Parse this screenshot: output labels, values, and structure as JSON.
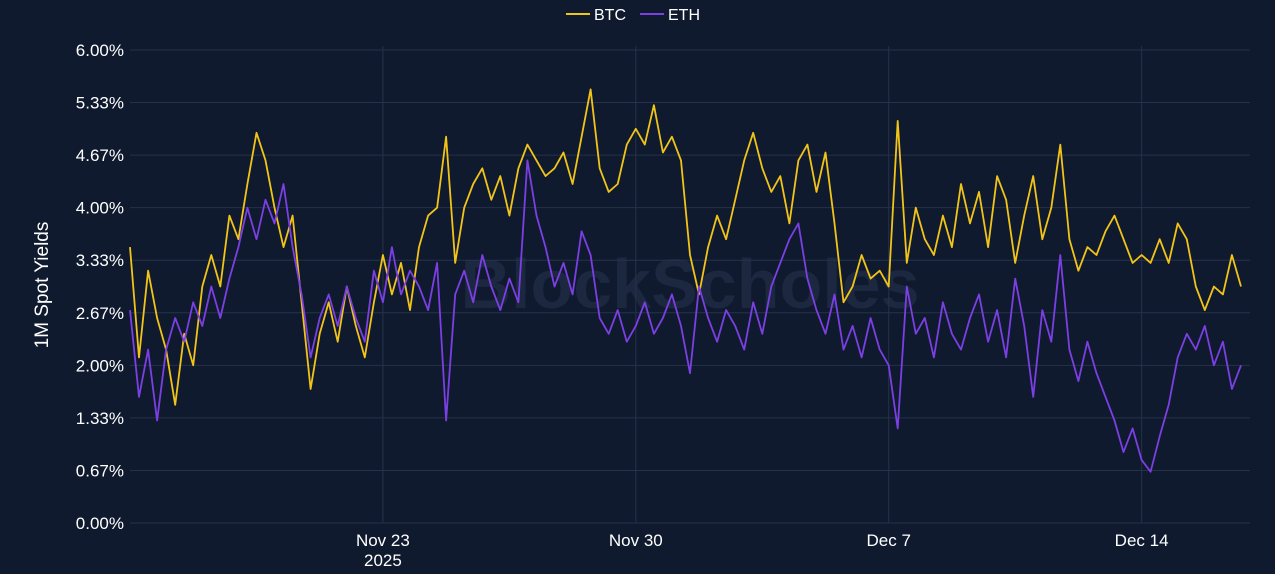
{
  "chart_data": {
    "type": "line",
    "title": "",
    "watermark": "BlockScholes",
    "ylabel": "1M Spot Yields",
    "xlabel": "",
    "x_range": [
      "2025-11-16",
      "2025-12-17"
    ],
    "ylim": [
      0,
      6
    ],
    "y_ticks": [
      "0.00%",
      "0.67%",
      "1.33%",
      "2.00%",
      "2.67%",
      "3.33%",
      "4.00%",
      "4.67%",
      "5.33%",
      "6.00%"
    ],
    "y_tick_values": [
      0,
      0.6667,
      1.3333,
      2.0,
      2.6667,
      3.3333,
      4.0,
      4.6667,
      5.3333,
      6.0
    ],
    "x_ticks": [
      {
        "date": "2025-11-23",
        "label": "Nov 23",
        "sublabel": "2025"
      },
      {
        "date": "2025-11-30",
        "label": "Nov 30",
        "sublabel": ""
      },
      {
        "date": "2025-12-07",
        "label": "Dec 7",
        "sublabel": ""
      },
      {
        "date": "2025-12-14",
        "label": "Dec 14",
        "sublabel": ""
      }
    ],
    "grid": true,
    "legend_position": "top-center",
    "colors": {
      "background": "#0f1a2e",
      "grid": "#26324a",
      "text": "#ffffff"
    },
    "series": [
      {
        "name": "BTC",
        "color": "#f2c418",
        "points": [
          [
            "2025-11-16T00:00",
            3.5
          ],
          [
            "2025-11-16T06:00",
            2.1
          ],
          [
            "2025-11-16T12:00",
            3.2
          ],
          [
            "2025-11-16T18:00",
            2.6
          ],
          [
            "2025-11-17T00:00",
            2.2
          ],
          [
            "2025-11-17T06:00",
            1.5
          ],
          [
            "2025-11-17T12:00",
            2.4
          ],
          [
            "2025-11-17T18:00",
            2.0
          ],
          [
            "2025-11-18T00:00",
            3.0
          ],
          [
            "2025-11-18T06:00",
            3.4
          ],
          [
            "2025-11-18T12:00",
            3.0
          ],
          [
            "2025-11-18T18:00",
            3.9
          ],
          [
            "2025-11-19T00:00",
            3.6
          ],
          [
            "2025-11-19T06:00",
            4.3
          ],
          [
            "2025-11-19T12:00",
            4.95
          ],
          [
            "2025-11-19T18:00",
            4.6
          ],
          [
            "2025-11-20T00:00",
            4.0
          ],
          [
            "2025-11-20T06:00",
            3.5
          ],
          [
            "2025-11-20T12:00",
            3.9
          ],
          [
            "2025-11-20T18:00",
            2.8
          ],
          [
            "2025-11-21T00:00",
            1.7
          ],
          [
            "2025-11-21T06:00",
            2.4
          ],
          [
            "2025-11-21T12:00",
            2.8
          ],
          [
            "2025-11-21T18:00",
            2.3
          ],
          [
            "2025-11-22T00:00",
            3.0
          ],
          [
            "2025-11-22T06:00",
            2.5
          ],
          [
            "2025-11-22T12:00",
            2.1
          ],
          [
            "2025-11-22T18:00",
            2.8
          ],
          [
            "2025-11-23T00:00",
            3.4
          ],
          [
            "2025-11-23T06:00",
            2.9
          ],
          [
            "2025-11-23T12:00",
            3.3
          ],
          [
            "2025-11-23T18:00",
            2.7
          ],
          [
            "2025-11-24T00:00",
            3.5
          ],
          [
            "2025-11-24T06:00",
            3.9
          ],
          [
            "2025-11-24T12:00",
            4.0
          ],
          [
            "2025-11-24T18:00",
            4.9
          ],
          [
            "2025-11-25T00:00",
            3.3
          ],
          [
            "2025-11-25T06:00",
            4.0
          ],
          [
            "2025-11-25T12:00",
            4.3
          ],
          [
            "2025-11-25T18:00",
            4.5
          ],
          [
            "2025-11-26T00:00",
            4.1
          ],
          [
            "2025-11-26T06:00",
            4.4
          ],
          [
            "2025-11-26T12:00",
            3.9
          ],
          [
            "2025-11-26T18:00",
            4.5
          ],
          [
            "2025-11-27T00:00",
            4.8
          ],
          [
            "2025-11-27T06:00",
            4.6
          ],
          [
            "2025-11-27T12:00",
            4.4
          ],
          [
            "2025-11-27T18:00",
            4.5
          ],
          [
            "2025-11-28T00:00",
            4.7
          ],
          [
            "2025-11-28T06:00",
            4.3
          ],
          [
            "2025-11-28T12:00",
            4.9
          ],
          [
            "2025-11-28T18:00",
            5.5
          ],
          [
            "2025-11-29T00:00",
            4.5
          ],
          [
            "2025-11-29T06:00",
            4.2
          ],
          [
            "2025-11-29T12:00",
            4.3
          ],
          [
            "2025-11-29T18:00",
            4.8
          ],
          [
            "2025-11-30T00:00",
            5.0
          ],
          [
            "2025-11-30T06:00",
            4.8
          ],
          [
            "2025-11-30T12:00",
            5.3
          ],
          [
            "2025-11-30T18:00",
            4.7
          ],
          [
            "2025-12-01T00:00",
            4.9
          ],
          [
            "2025-12-01T06:00",
            4.6
          ],
          [
            "2025-12-01T12:00",
            3.4
          ],
          [
            "2025-12-01T18:00",
            2.9
          ],
          [
            "2025-12-02T00:00",
            3.5
          ],
          [
            "2025-12-02T06:00",
            3.9
          ],
          [
            "2025-12-02T12:00",
            3.6
          ],
          [
            "2025-12-02T18:00",
            4.1
          ],
          [
            "2025-12-03T00:00",
            4.6
          ],
          [
            "2025-12-03T06:00",
            4.95
          ],
          [
            "2025-12-03T12:00",
            4.5
          ],
          [
            "2025-12-03T18:00",
            4.2
          ],
          [
            "2025-12-04T00:00",
            4.4
          ],
          [
            "2025-12-04T06:00",
            3.8
          ],
          [
            "2025-12-04T12:00",
            4.6
          ],
          [
            "2025-12-04T18:00",
            4.8
          ],
          [
            "2025-12-05T00:00",
            4.2
          ],
          [
            "2025-12-05T06:00",
            4.7
          ],
          [
            "2025-12-05T12:00",
            3.8
          ],
          [
            "2025-12-05T18:00",
            2.8
          ],
          [
            "2025-12-06T00:00",
            3.0
          ],
          [
            "2025-12-06T06:00",
            3.4
          ],
          [
            "2025-12-06T12:00",
            3.1
          ],
          [
            "2025-12-06T18:00",
            3.2
          ],
          [
            "2025-12-07T00:00",
            3.0
          ],
          [
            "2025-12-07T06:00",
            5.1
          ],
          [
            "2025-12-07T12:00",
            3.3
          ],
          [
            "2025-12-07T18:00",
            4.0
          ],
          [
            "2025-12-08T00:00",
            3.6
          ],
          [
            "2025-12-08T06:00",
            3.4
          ],
          [
            "2025-12-08T12:00",
            3.9
          ],
          [
            "2025-12-08T18:00",
            3.5
          ],
          [
            "2025-12-09T00:00",
            4.3
          ],
          [
            "2025-12-09T06:00",
            3.8
          ],
          [
            "2025-12-09T12:00",
            4.2
          ],
          [
            "2025-12-09T18:00",
            3.5
          ],
          [
            "2025-12-10T00:00",
            4.4
          ],
          [
            "2025-12-10T06:00",
            4.1
          ],
          [
            "2025-12-10T12:00",
            3.3
          ],
          [
            "2025-12-10T18:00",
            3.9
          ],
          [
            "2025-12-11T00:00",
            4.4
          ],
          [
            "2025-12-11T06:00",
            3.6
          ],
          [
            "2025-12-11T12:00",
            4.0
          ],
          [
            "2025-12-11T18:00",
            4.8
          ],
          [
            "2025-12-12T00:00",
            3.6
          ],
          [
            "2025-12-12T06:00",
            3.2
          ],
          [
            "2025-12-12T12:00",
            3.5
          ],
          [
            "2025-12-12T18:00",
            3.4
          ],
          [
            "2025-12-13T00:00",
            3.7
          ],
          [
            "2025-12-13T06:00",
            3.9
          ],
          [
            "2025-12-13T12:00",
            3.6
          ],
          [
            "2025-12-13T18:00",
            3.3
          ],
          [
            "2025-12-14T00:00",
            3.4
          ],
          [
            "2025-12-14T06:00",
            3.3
          ],
          [
            "2025-12-14T12:00",
            3.6
          ],
          [
            "2025-12-14T18:00",
            3.3
          ],
          [
            "2025-12-15T00:00",
            3.8
          ],
          [
            "2025-12-15T06:00",
            3.6
          ],
          [
            "2025-12-15T12:00",
            3.0
          ],
          [
            "2025-12-15T18:00",
            2.7
          ],
          [
            "2025-12-16T00:00",
            3.0
          ],
          [
            "2025-12-16T06:00",
            2.9
          ],
          [
            "2025-12-16T12:00",
            3.4
          ],
          [
            "2025-12-16T18:00",
            3.0
          ]
        ]
      },
      {
        "name": "ETH",
        "color": "#7b3fe4",
        "points": [
          [
            "2025-11-16T00:00",
            2.7
          ],
          [
            "2025-11-16T06:00",
            1.6
          ],
          [
            "2025-11-16T12:00",
            2.2
          ],
          [
            "2025-11-16T18:00",
            1.3
          ],
          [
            "2025-11-17T00:00",
            2.2
          ],
          [
            "2025-11-17T06:00",
            2.6
          ],
          [
            "2025-11-17T12:00",
            2.3
          ],
          [
            "2025-11-17T18:00",
            2.8
          ],
          [
            "2025-11-18T00:00",
            2.5
          ],
          [
            "2025-11-18T06:00",
            3.0
          ],
          [
            "2025-11-18T12:00",
            2.6
          ],
          [
            "2025-11-18T18:00",
            3.1
          ],
          [
            "2025-11-19T00:00",
            3.5
          ],
          [
            "2025-11-19T06:00",
            4.0
          ],
          [
            "2025-11-19T12:00",
            3.6
          ],
          [
            "2025-11-19T18:00",
            4.1
          ],
          [
            "2025-11-20T00:00",
            3.8
          ],
          [
            "2025-11-20T06:00",
            4.3
          ],
          [
            "2025-11-20T12:00",
            3.5
          ],
          [
            "2025-11-20T18:00",
            2.9
          ],
          [
            "2025-11-21T00:00",
            2.1
          ],
          [
            "2025-11-21T06:00",
            2.6
          ],
          [
            "2025-11-21T12:00",
            2.9
          ],
          [
            "2025-11-21T18:00",
            2.5
          ],
          [
            "2025-11-22T00:00",
            3.0
          ],
          [
            "2025-11-22T06:00",
            2.6
          ],
          [
            "2025-11-22T12:00",
            2.3
          ],
          [
            "2025-11-22T18:00",
            3.2
          ],
          [
            "2025-11-23T00:00",
            2.8
          ],
          [
            "2025-11-23T06:00",
            3.5
          ],
          [
            "2025-11-23T12:00",
            2.9
          ],
          [
            "2025-11-23T18:00",
            3.2
          ],
          [
            "2025-11-24T00:00",
            3.0
          ],
          [
            "2025-11-24T06:00",
            2.7
          ],
          [
            "2025-11-24T12:00",
            3.3
          ],
          [
            "2025-11-24T18:00",
            1.3
          ],
          [
            "2025-11-25T00:00",
            2.9
          ],
          [
            "2025-11-25T06:00",
            3.2
          ],
          [
            "2025-11-25T12:00",
            2.8
          ],
          [
            "2025-11-25T18:00",
            3.4
          ],
          [
            "2025-11-26T00:00",
            3.0
          ],
          [
            "2025-11-26T06:00",
            2.7
          ],
          [
            "2025-11-26T12:00",
            3.1
          ],
          [
            "2025-11-26T18:00",
            2.8
          ],
          [
            "2025-11-27T00:00",
            4.6
          ],
          [
            "2025-11-27T06:00",
            3.9
          ],
          [
            "2025-11-27T12:00",
            3.5
          ],
          [
            "2025-11-27T18:00",
            3.0
          ],
          [
            "2025-11-28T00:00",
            3.3
          ],
          [
            "2025-11-28T06:00",
            2.9
          ],
          [
            "2025-11-28T12:00",
            3.7
          ],
          [
            "2025-11-28T18:00",
            3.4
          ],
          [
            "2025-11-29T00:00",
            2.6
          ],
          [
            "2025-11-29T06:00",
            2.4
          ],
          [
            "2025-11-29T12:00",
            2.7
          ],
          [
            "2025-11-29T18:00",
            2.3
          ],
          [
            "2025-11-30T00:00",
            2.5
          ],
          [
            "2025-11-30T06:00",
            2.8
          ],
          [
            "2025-11-30T12:00",
            2.4
          ],
          [
            "2025-11-30T18:00",
            2.6
          ],
          [
            "2025-12-01T00:00",
            2.9
          ],
          [
            "2025-12-01T06:00",
            2.5
          ],
          [
            "2025-12-01T12:00",
            1.9
          ],
          [
            "2025-12-01T18:00",
            3.0
          ],
          [
            "2025-12-02T00:00",
            2.6
          ],
          [
            "2025-12-02T06:00",
            2.3
          ],
          [
            "2025-12-02T12:00",
            2.7
          ],
          [
            "2025-12-02T18:00",
            2.5
          ],
          [
            "2025-12-03T00:00",
            2.2
          ],
          [
            "2025-12-03T06:00",
            2.8
          ],
          [
            "2025-12-03T12:00",
            2.4
          ],
          [
            "2025-12-03T18:00",
            3.0
          ],
          [
            "2025-12-04T00:00",
            3.3
          ],
          [
            "2025-12-04T06:00",
            3.6
          ],
          [
            "2025-12-04T12:00",
            3.8
          ],
          [
            "2025-12-04T18:00",
            3.1
          ],
          [
            "2025-12-05T00:00",
            2.7
          ],
          [
            "2025-12-05T06:00",
            2.4
          ],
          [
            "2025-12-05T12:00",
            2.9
          ],
          [
            "2025-12-05T18:00",
            2.2
          ],
          [
            "2025-12-06T00:00",
            2.5
          ],
          [
            "2025-12-06T06:00",
            2.1
          ],
          [
            "2025-12-06T12:00",
            2.6
          ],
          [
            "2025-12-06T18:00",
            2.2
          ],
          [
            "2025-12-07T00:00",
            2.0
          ],
          [
            "2025-12-07T06:00",
            1.2
          ],
          [
            "2025-12-07T12:00",
            3.0
          ],
          [
            "2025-12-07T18:00",
            2.4
          ],
          [
            "2025-12-08T00:00",
            2.6
          ],
          [
            "2025-12-08T06:00",
            2.1
          ],
          [
            "2025-12-08T12:00",
            2.8
          ],
          [
            "2025-12-08T18:00",
            2.4
          ],
          [
            "2025-12-09T00:00",
            2.2
          ],
          [
            "2025-12-09T06:00",
            2.6
          ],
          [
            "2025-12-09T12:00",
            2.9
          ],
          [
            "2025-12-09T18:00",
            2.3
          ],
          [
            "2025-12-10T00:00",
            2.7
          ],
          [
            "2025-12-10T06:00",
            2.1
          ],
          [
            "2025-12-10T12:00",
            3.1
          ],
          [
            "2025-12-10T18:00",
            2.5
          ],
          [
            "2025-12-11T00:00",
            1.6
          ],
          [
            "2025-12-11T06:00",
            2.7
          ],
          [
            "2025-12-11T12:00",
            2.3
          ],
          [
            "2025-12-11T18:00",
            3.4
          ],
          [
            "2025-12-12T00:00",
            2.2
          ],
          [
            "2025-12-12T06:00",
            1.8
          ],
          [
            "2025-12-12T12:00",
            2.3
          ],
          [
            "2025-12-12T18:00",
            1.9
          ],
          [
            "2025-12-13T00:00",
            1.6
          ],
          [
            "2025-12-13T06:00",
            1.3
          ],
          [
            "2025-12-13T12:00",
            0.9
          ],
          [
            "2025-12-13T18:00",
            1.2
          ],
          [
            "2025-12-14T00:00",
            0.8
          ],
          [
            "2025-12-14T06:00",
            0.65
          ],
          [
            "2025-12-14T12:00",
            1.1
          ],
          [
            "2025-12-14T18:00",
            1.5
          ],
          [
            "2025-12-15T00:00",
            2.1
          ],
          [
            "2025-12-15T06:00",
            2.4
          ],
          [
            "2025-12-15T12:00",
            2.2
          ],
          [
            "2025-12-15T18:00",
            2.5
          ],
          [
            "2025-12-16T00:00",
            2.0
          ],
          [
            "2025-12-16T06:00",
            2.3
          ],
          [
            "2025-12-16T12:00",
            1.7
          ],
          [
            "2025-12-16T18:00",
            2.0
          ]
        ]
      }
    ]
  }
}
